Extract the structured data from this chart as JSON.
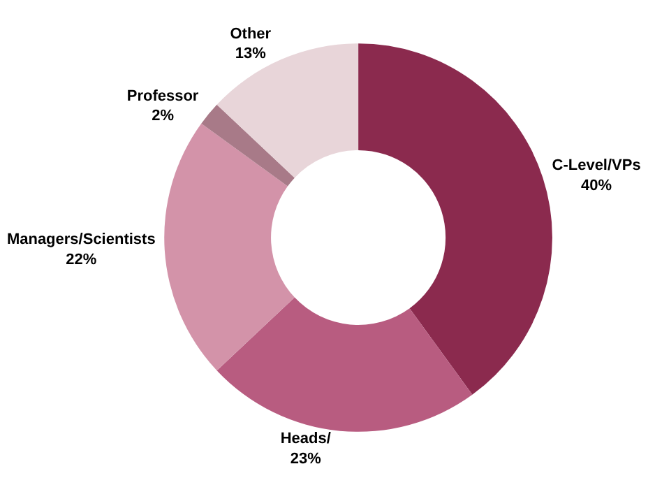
{
  "chart_data": {
    "type": "donut",
    "categories": [
      "C-Level/VPs",
      "Heads/",
      "Managers/Scientists",
      "Professor",
      "Other"
    ],
    "values": [
      40,
      23,
      22,
      2,
      13
    ],
    "value_labels": [
      "40%",
      "23%",
      "22%",
      "2%",
      "13%"
    ],
    "colors": [
      "#8b2a4e",
      "#b85c80",
      "#d393a9",
      "#a87a88",
      "#e8d5d9"
    ],
    "legend": false
  }
}
